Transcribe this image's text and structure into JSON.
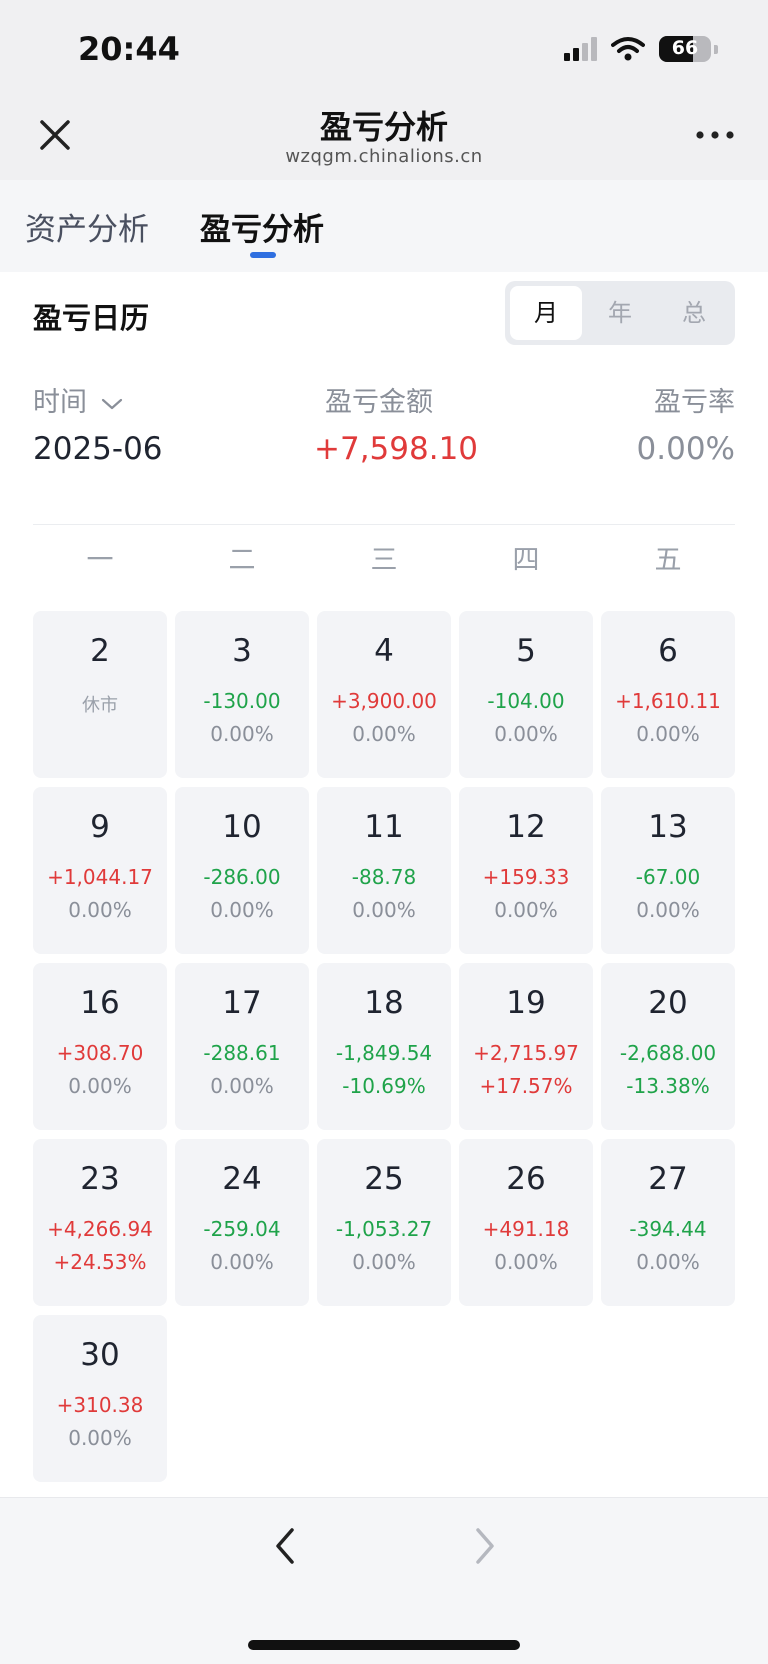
{
  "status_bar": {
    "time": "20:44",
    "battery": "66",
    "battery_level": 0.66
  },
  "nav": {
    "title": "盈亏分析",
    "subtitle": "wzqgm.chinalions.cn"
  },
  "tabs": [
    {
      "label": "资产分析"
    },
    {
      "label": "盈亏分析"
    }
  ],
  "calendar": {
    "title": "盈亏日历",
    "segments": [
      "月",
      "年",
      "总"
    ],
    "time_label": "时间",
    "amount_label": "盈亏金额",
    "rate_label": "盈亏率",
    "month": "2025-06",
    "total_amount": "+7,598.10",
    "total_rate": "0.00%",
    "weekdays": [
      "一",
      "二",
      "三",
      "四",
      "五"
    ],
    "days": [
      {
        "day": "2",
        "closed": "休市"
      },
      {
        "day": "3",
        "amount": "-130.00",
        "rate": "0.00%"
      },
      {
        "day": "4",
        "amount": "+3,900.00",
        "rate": "0.00%"
      },
      {
        "day": "5",
        "amount": "-104.00",
        "rate": "0.00%"
      },
      {
        "day": "6",
        "amount": "+1,610.11",
        "rate": "0.00%"
      },
      {
        "day": "9",
        "amount": "+1,044.17",
        "rate": "0.00%"
      },
      {
        "day": "10",
        "amount": "-286.00",
        "rate": "0.00%"
      },
      {
        "day": "11",
        "amount": "-88.78",
        "rate": "0.00%"
      },
      {
        "day": "12",
        "amount": "+159.33",
        "rate": "0.00%"
      },
      {
        "day": "13",
        "amount": "-67.00",
        "rate": "0.00%"
      },
      {
        "day": "16",
        "amount": "+308.70",
        "rate": "0.00%"
      },
      {
        "day": "17",
        "amount": "-288.61",
        "rate": "0.00%"
      },
      {
        "day": "18",
        "amount": "-1,849.54",
        "rate": "-10.69%"
      },
      {
        "day": "19",
        "amount": "+2,715.97",
        "rate": "+17.57%"
      },
      {
        "day": "20",
        "amount": "-2,688.00",
        "rate": "-13.38%"
      },
      {
        "day": "23",
        "amount": "+4,266.94",
        "rate": "+24.53%"
      },
      {
        "day": "24",
        "amount": "-259.04",
        "rate": "0.00%"
      },
      {
        "day": "25",
        "amount": "-1,053.27",
        "rate": "0.00%"
      },
      {
        "day": "26",
        "amount": "+491.18",
        "rate": "0.00%"
      },
      {
        "day": "27",
        "amount": "-394.44",
        "rate": "0.00%"
      },
      {
        "day": "30",
        "amount": "+310.38",
        "rate": "0.00%"
      }
    ]
  },
  "colors": {
    "profit": "#e03a3a",
    "loss": "#1fa34a",
    "neutral": "#8a8f99",
    "accent": "#2f6fe0"
  }
}
